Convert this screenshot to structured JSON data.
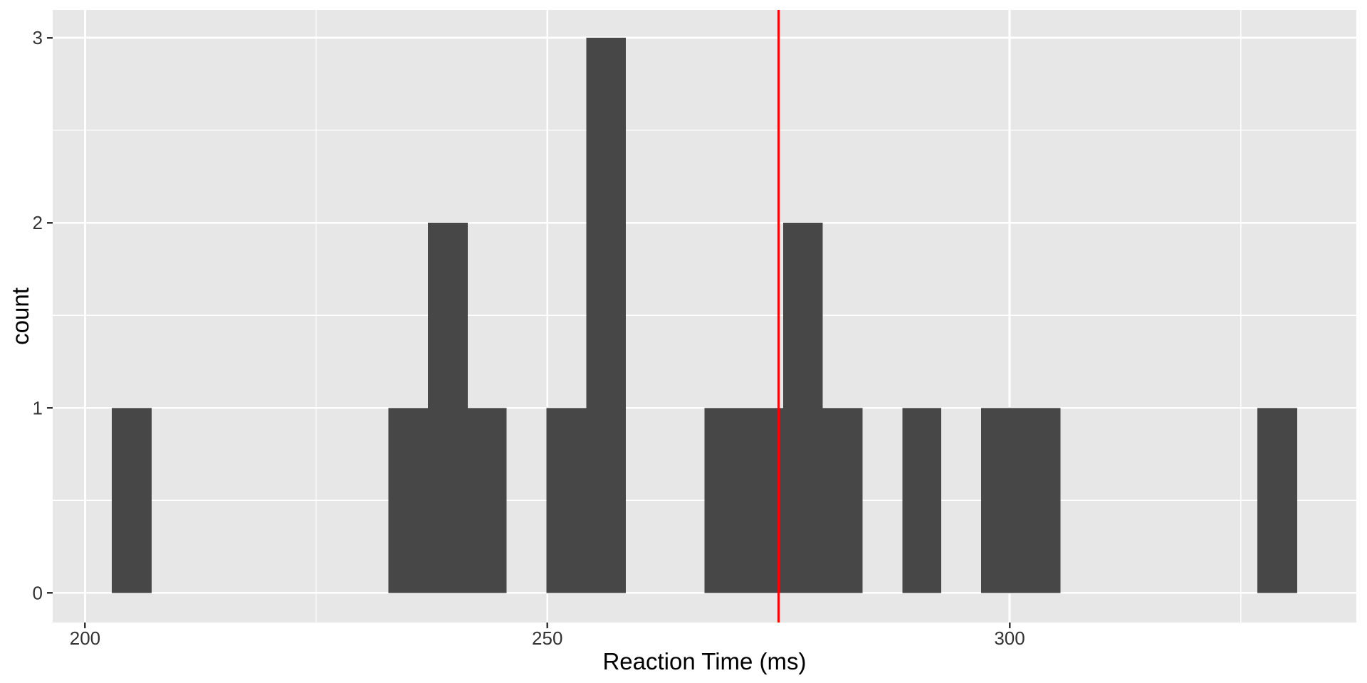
{
  "chart_data": {
    "type": "bar",
    "subtype": "histogram",
    "title": "",
    "xlabel": "Reaction Time (ms)",
    "ylabel": "count",
    "x_ticks": [
      200,
      250,
      300
    ],
    "y_ticks": [
      0,
      1,
      2,
      3
    ],
    "x_minor_grid": [
      225,
      275,
      325
    ],
    "y_minor_grid": [
      0.5,
      1.5,
      2.5
    ],
    "xlim": [
      196.5,
      337.5
    ],
    "ylim": [
      -0.16,
      3.15
    ],
    "grid": "on",
    "legend_position": "none",
    "bin_width_ms": 4.27,
    "bins": [
      {
        "left": 202.9,
        "right": 207.2,
        "count": 1
      },
      {
        "left": 232.8,
        "right": 237.1,
        "count": 1
      },
      {
        "left": 237.1,
        "right": 241.4,
        "count": 2
      },
      {
        "left": 241.4,
        "right": 245.6,
        "count": 1
      },
      {
        "left": 249.9,
        "right": 254.2,
        "count": 1
      },
      {
        "left": 254.2,
        "right": 258.5,
        "count": 3
      },
      {
        "left": 267.0,
        "right": 271.3,
        "count": 1
      },
      {
        "left": 271.3,
        "right": 275.5,
        "count": 1
      },
      {
        "left": 275.5,
        "right": 279.8,
        "count": 2
      },
      {
        "left": 279.8,
        "right": 284.1,
        "count": 1
      },
      {
        "left": 288.4,
        "right": 292.6,
        "count": 1
      },
      {
        "left": 296.9,
        "right": 301.2,
        "count": 1
      },
      {
        "left": 301.2,
        "right": 305.5,
        "count": 1
      },
      {
        "left": 326.8,
        "right": 331.1,
        "count": 1
      }
    ],
    "vline": {
      "x": 275,
      "color": "#FF0000",
      "width": 3
    },
    "colors": {
      "bar_fill": "#474747",
      "panel_background": "#E7E7E7",
      "gridline": "#FFFFFF",
      "tick_label": "#333333",
      "tick_mark": "#333333",
      "axis_title": "#000000",
      "figure_background": "#FFFFFF",
      "vline": "#FF0000"
    }
  }
}
